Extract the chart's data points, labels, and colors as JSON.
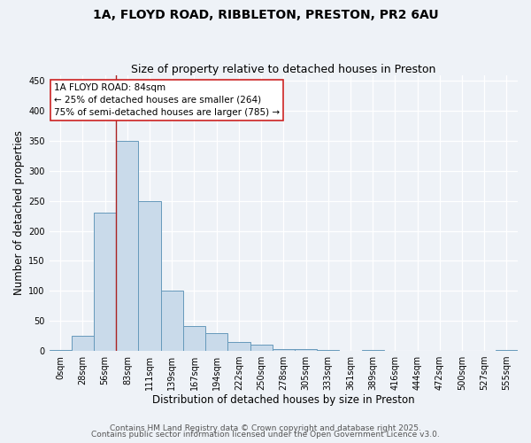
{
  "title_line1": "1A, FLOYD ROAD, RIBBLETON, PRESTON, PR2 6AU",
  "title_line2": "Size of property relative to detached houses in Preston",
  "xlabel": "Distribution of detached houses by size in Preston",
  "ylabel": "Number of detached properties",
  "bar_labels": [
    "0sqm",
    "28sqm",
    "56sqm",
    "83sqm",
    "111sqm",
    "139sqm",
    "167sqm",
    "194sqm",
    "222sqm",
    "250sqm",
    "278sqm",
    "305sqm",
    "333sqm",
    "361sqm",
    "389sqm",
    "416sqm",
    "444sqm",
    "472sqm",
    "500sqm",
    "527sqm",
    "555sqm"
  ],
  "bar_values": [
    2,
    25,
    230,
    350,
    250,
    100,
    42,
    30,
    15,
    10,
    3,
    3,
    1,
    0,
    2,
    0,
    0,
    0,
    0,
    0,
    2
  ],
  "bar_color": "#c9daea",
  "bar_edge_color": "#6699bb",
  "bar_width": 1.0,
  "ylim": [
    0,
    460
  ],
  "yticks": [
    0,
    50,
    100,
    150,
    200,
    250,
    300,
    350,
    400,
    450
  ],
  "vline_color": "#aa2222",
  "annotation_line1": "1A FLOYD ROAD: 84sqm",
  "annotation_line2": "← 25% of detached houses are smaller (264)",
  "annotation_line3": "75% of semi-detached houses are larger (785) →",
  "footer_line1": "Contains HM Land Registry data © Crown copyright and database right 2025.",
  "footer_line2": "Contains public sector information licensed under the Open Government Licence v3.0.",
  "background_color": "#eef2f7",
  "plot_background": "#eef2f7",
  "grid_color": "#ffffff",
  "title_fontsize": 10,
  "subtitle_fontsize": 9,
  "axis_label_fontsize": 8.5,
  "tick_fontsize": 7,
  "annotation_fontsize": 7.5,
  "footer_fontsize": 6.5
}
